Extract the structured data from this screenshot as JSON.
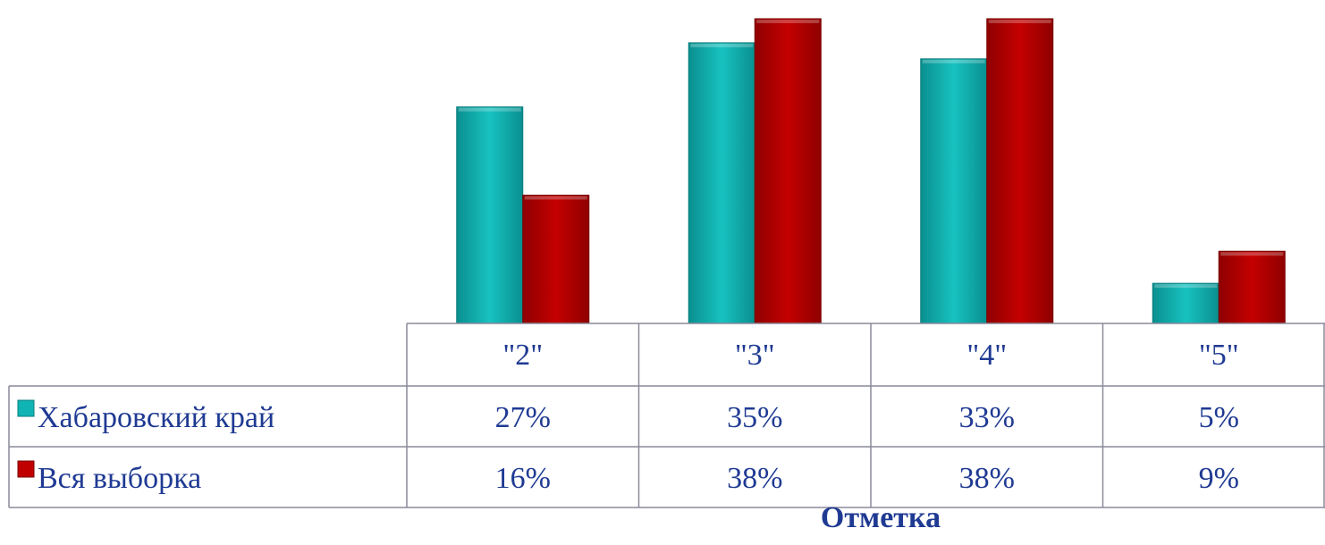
{
  "chart_data": {
    "type": "bar",
    "title": "",
    "xlabel": "Отметка",
    "ylabel": "",
    "categories": [
      "\"2\"",
      "\"3\"",
      "\"4\"",
      "\"5\""
    ],
    "series": [
      {
        "name": "Хабаровский край",
        "values": [
          27,
          35,
          33,
          5
        ],
        "labels": [
          "27%",
          "35%",
          "33%",
          "5%"
        ],
        "color": "#10b4b4"
      },
      {
        "name": "Вся выборка",
        "values": [
          16,
          38,
          38,
          9
        ],
        "labels": [
          "16%",
          "38%",
          "38%",
          "9%"
        ],
        "color": "#c00000"
      }
    ],
    "ylim": [
      0,
      39
    ],
    "legend": "data-table-left",
    "grid": false
  }
}
